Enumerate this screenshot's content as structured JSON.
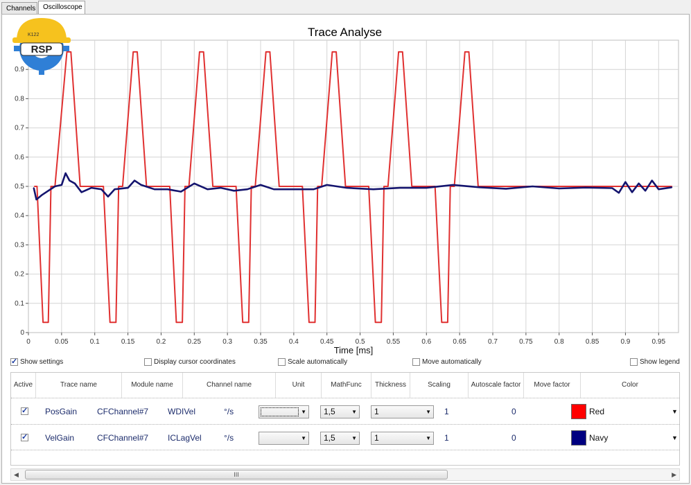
{
  "tabs": [
    {
      "label": "Channels"
    },
    {
      "label": "Oscilloscope"
    }
  ],
  "logo": {
    "top_text": "K122",
    "main_text": "RSP"
  },
  "chart_data": {
    "type": "line",
    "title": "Trace Analyse",
    "xlabel": "Time [ms]",
    "ylabel": "",
    "xlim": [
      0,
      0.98
    ],
    "ylim": [
      0,
      1.0
    ],
    "x_ticks": [
      "0",
      "0.05",
      "0.1",
      "0.15",
      "0.2",
      "0.25",
      "0.3",
      "0.35",
      "0.4",
      "0.45",
      "0.5",
      "0.55",
      "0.6",
      "0.65",
      "0.7",
      "0.75",
      "0.8",
      "0.85",
      "0.9",
      "0.95"
    ],
    "y_ticks": [
      "0",
      "0.1",
      "0.2",
      "0.3",
      "0.4",
      "0.5",
      "0.6",
      "0.7",
      "0.8",
      "0.9"
    ],
    "grid": true,
    "series": [
      {
        "name": "PosGain",
        "color": "#e03030",
        "x": [
          0.009,
          0.013,
          0.022,
          0.03,
          0.034,
          0.04,
          0.058,
          0.064,
          0.078,
          0.084,
          0.1,
          0.108,
          0.113,
          0.123,
          0.132,
          0.136,
          0.142,
          0.158,
          0.164,
          0.178,
          0.184,
          0.2,
          0.208,
          0.213,
          0.223,
          0.232,
          0.236,
          0.242,
          0.258,
          0.264,
          0.278,
          0.284,
          0.3,
          0.308,
          0.313,
          0.323,
          0.332,
          0.336,
          0.342,
          0.358,
          0.364,
          0.378,
          0.384,
          0.4,
          0.408,
          0.413,
          0.423,
          0.432,
          0.436,
          0.442,
          0.458,
          0.464,
          0.478,
          0.484,
          0.5,
          0.508,
          0.513,
          0.523,
          0.532,
          0.536,
          0.542,
          0.558,
          0.564,
          0.578,
          0.584,
          0.6,
          0.608,
          0.613,
          0.623,
          0.632,
          0.636,
          0.642,
          0.658,
          0.664,
          0.678,
          0.684,
          0.97
        ],
        "y": [
          0.5,
          0.5,
          0.035,
          0.035,
          0.5,
          0.5,
          0.96,
          0.96,
          0.5,
          0.5,
          0.5,
          0.5,
          0.5,
          0.035,
          0.035,
          0.5,
          0.5,
          0.96,
          0.96,
          0.5,
          0.5,
          0.5,
          0.5,
          0.5,
          0.035,
          0.035,
          0.5,
          0.5,
          0.96,
          0.96,
          0.5,
          0.5,
          0.5,
          0.5,
          0.5,
          0.035,
          0.035,
          0.5,
          0.5,
          0.96,
          0.96,
          0.5,
          0.5,
          0.5,
          0.5,
          0.5,
          0.035,
          0.035,
          0.5,
          0.5,
          0.96,
          0.96,
          0.5,
          0.5,
          0.5,
          0.5,
          0.5,
          0.035,
          0.035,
          0.5,
          0.5,
          0.96,
          0.96,
          0.5,
          0.5,
          0.5,
          0.5,
          0.5,
          0.035,
          0.035,
          0.5,
          0.5,
          0.96,
          0.96,
          0.5,
          0.5,
          0.5
        ]
      },
      {
        "name": "VelGain",
        "color": "#14146e",
        "x": [
          0.008,
          0.012,
          0.02,
          0.03,
          0.04,
          0.05,
          0.056,
          0.062,
          0.07,
          0.08,
          0.095,
          0.11,
          0.12,
          0.13,
          0.15,
          0.16,
          0.17,
          0.19,
          0.21,
          0.23,
          0.25,
          0.27,
          0.29,
          0.31,
          0.33,
          0.35,
          0.37,
          0.39,
          0.41,
          0.43,
          0.45,
          0.48,
          0.52,
          0.56,
          0.6,
          0.64,
          0.68,
          0.72,
          0.76,
          0.8,
          0.84,
          0.88,
          0.89,
          0.9,
          0.91,
          0.92,
          0.93,
          0.94,
          0.95,
          0.97
        ],
        "y": [
          0.495,
          0.455,
          0.47,
          0.485,
          0.5,
          0.505,
          0.545,
          0.52,
          0.51,
          0.48,
          0.495,
          0.49,
          0.465,
          0.49,
          0.495,
          0.52,
          0.505,
          0.49,
          0.49,
          0.482,
          0.51,
          0.49,
          0.495,
          0.485,
          0.49,
          0.505,
          0.49,
          0.49,
          0.49,
          0.49,
          0.505,
          0.495,
          0.49,
          0.495,
          0.495,
          0.505,
          0.497,
          0.492,
          0.5,
          0.493,
          0.496,
          0.494,
          0.478,
          0.515,
          0.48,
          0.51,
          0.485,
          0.52,
          0.49,
          0.497
        ]
      }
    ]
  },
  "options": {
    "show_settings": "Show settings",
    "display_cursor": "Display cursor coordinates",
    "scale_auto": "Scale automatically",
    "move_auto": "Move automatically",
    "show_legend": "Show legend"
  },
  "table": {
    "headers": [
      "Active",
      "Trace name",
      "Module name",
      "Channel name",
      "Unit",
      "MathFunc",
      "Thickness",
      "Scaling",
      "Autoscale factor",
      "Move factor",
      "Color"
    ],
    "rows": [
      {
        "trace": "PosGain",
        "module": "CFChannel#7",
        "channel": "WDIVel",
        "unit": "°/s",
        "mathfunc": "1,5",
        "thickness": "1",
        "scaling": "1",
        "autoscale": "0",
        "color_name": "Red",
        "color_hex": "#ff0000"
      },
      {
        "trace": "VelGain",
        "module": "CFChannel#7",
        "channel": "ICLagVel",
        "unit": "°/s",
        "mathfunc": "1,5",
        "thickness": "1",
        "scaling": "1",
        "autoscale": "0",
        "color_name": "Navy",
        "color_hex": "#000080"
      }
    ]
  },
  "scrollbar": {
    "thumb_label": "III"
  }
}
